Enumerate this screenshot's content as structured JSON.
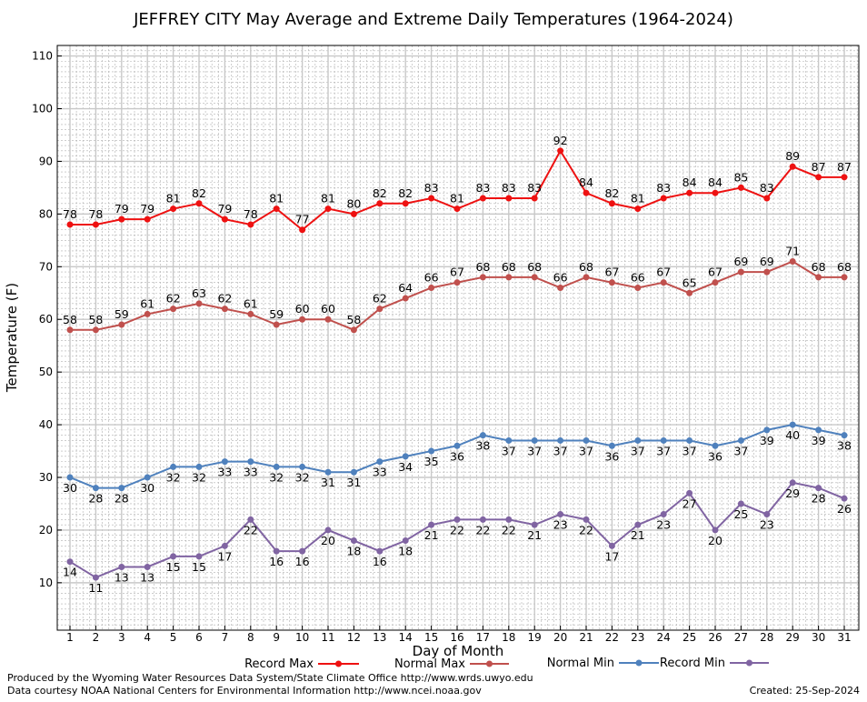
{
  "chart_data": {
    "type": "line",
    "title": "JEFFREY CITY May Average and Extreme Daily Temperatures (1964-2024)",
    "xlabel": "Day of Month",
    "ylabel": "Temperature (F)",
    "ylim": [
      1,
      112
    ],
    "yticks": [
      10,
      20,
      30,
      40,
      50,
      60,
      70,
      80,
      90,
      100,
      110
    ],
    "x": [
      1,
      2,
      3,
      4,
      5,
      6,
      7,
      8,
      9,
      10,
      11,
      12,
      13,
      14,
      15,
      16,
      17,
      18,
      19,
      20,
      21,
      22,
      23,
      24,
      25,
      26,
      27,
      28,
      29,
      30,
      31
    ],
    "grid": true,
    "legend_position": "bottom",
    "series": [
      {
        "name": "Record Max",
        "color": "#ee1111",
        "label_pos": "above",
        "values": [
          78,
          78,
          79,
          79,
          81,
          82,
          79,
          78,
          81,
          77,
          81,
          80,
          82,
          82,
          83,
          81,
          83,
          83,
          83,
          92,
          84,
          82,
          81,
          83,
          84,
          84,
          85,
          83,
          89,
          87,
          87
        ]
      },
      {
        "name": "Normal Max",
        "color": "#c0504d",
        "label_pos": "above",
        "values": [
          58,
          58,
          59,
          61,
          62,
          63,
          62,
          61,
          59,
          60,
          60,
          58,
          62,
          64,
          66,
          67,
          68,
          68,
          68,
          66,
          68,
          67,
          66,
          67,
          65,
          67,
          69,
          69,
          71,
          68,
          68
        ]
      },
      {
        "name": "Normal Min",
        "color": "#4f81bd",
        "label_pos": "below",
        "values": [
          30,
          28,
          28,
          30,
          32,
          32,
          33,
          33,
          32,
          32,
          31,
          31,
          33,
          34,
          35,
          36,
          38,
          37,
          37,
          37,
          37,
          36,
          37,
          37,
          37,
          36,
          37,
          39,
          40,
          39,
          38
        ]
      },
      {
        "name": "Record Min",
        "color": "#8064a2",
        "label_pos": "below",
        "values": [
          14,
          11,
          13,
          13,
          15,
          15,
          17,
          22,
          16,
          16,
          20,
          18,
          16,
          18,
          21,
          22,
          22,
          22,
          21,
          23,
          22,
          17,
          21,
          23,
          27,
          20,
          25,
          23,
          29,
          28,
          26
        ]
      }
    ]
  },
  "footer": {
    "produced_by": "Produced by the Wyoming Water Resources Data System/State Climate Office http://www.wrds.uwyo.edu",
    "courtesy": "Data courtesy NOAA National Centers for Environmental Information http://www.ncei.noaa.gov",
    "created": "Created:  25-Sep-2024"
  }
}
